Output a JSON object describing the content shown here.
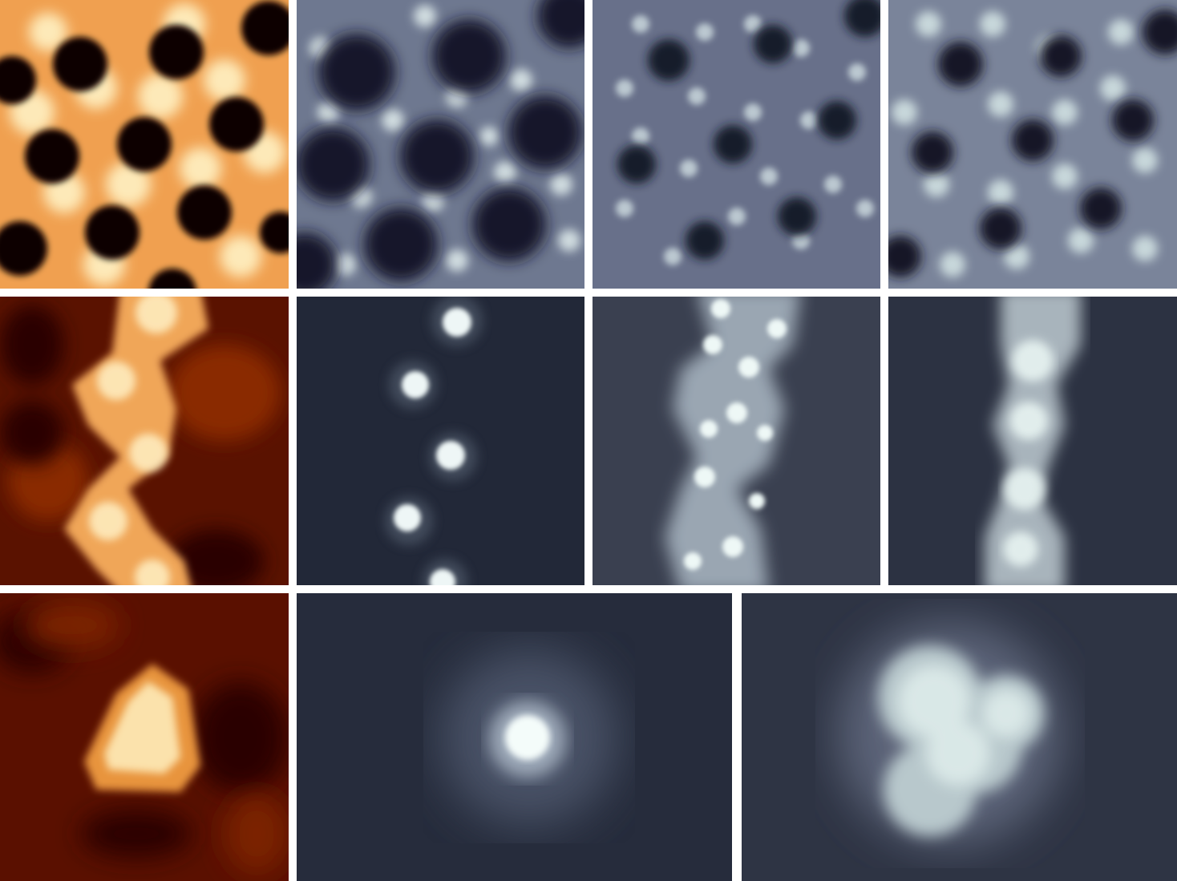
{
  "figure": {
    "background": "#ffffff",
    "rows": [
      {
        "name": "lattice",
        "panels": [
          {
            "name": "panel-1a-lattice-topography",
            "colormap": "copper",
            "pattern": "kagome-holes"
          },
          {
            "name": "panel-1b-lattice-map",
            "colormap": "gray-blue",
            "pattern": "holes-with-bright-nodes"
          },
          {
            "name": "panel-1c-lattice-map",
            "colormap": "gray-blue",
            "pattern": "small-holes-with-rings"
          },
          {
            "name": "panel-1d-lattice-map",
            "colormap": "gray-blue",
            "pattern": "holes-with-dense-lobes"
          }
        ]
      },
      {
        "name": "chain",
        "panels": [
          {
            "name": "panel-2a-chain-topography",
            "colormap": "copper",
            "pattern": "zigzag-chain"
          },
          {
            "name": "panel-2b-chain-map",
            "colormap": "gray-blue",
            "pattern": "isolated-dots"
          },
          {
            "name": "panel-2c-chain-map",
            "colormap": "gray-blue",
            "pattern": "zigzag-band-with-dots"
          },
          {
            "name": "panel-2d-chain-map",
            "colormap": "gray-blue",
            "pattern": "zigzag-band"
          }
        ]
      },
      {
        "name": "cluster",
        "panels": [
          {
            "name": "panel-3a-triangle-topography",
            "colormap": "copper",
            "pattern": "triangle"
          },
          {
            "name": "panel-3b-single-spot-map",
            "colormap": "gray-blue",
            "pattern": "single-spot"
          },
          {
            "name": "panel-3c-trimer-map",
            "colormap": "gray-blue",
            "pattern": "trefoil-cluster"
          }
        ]
      }
    ],
    "colors": {
      "copper_dark": "#1a0200",
      "copper_mid": "#c86418",
      "copper_bright": "#fff0c8",
      "map_dark": "#1a1f2c",
      "map_bright": "#e6f4f2"
    }
  }
}
